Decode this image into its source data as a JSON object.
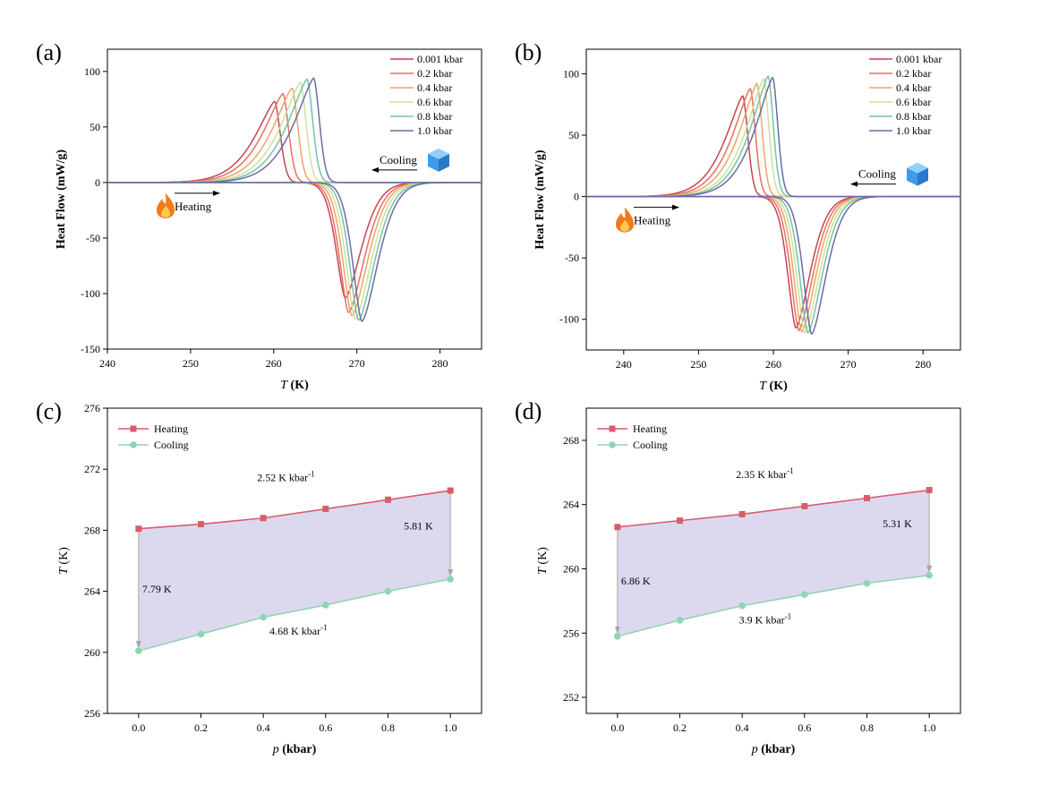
{
  "colors": {
    "c0": "#c9434f",
    "c1": "#e4705f",
    "c2": "#eea36c",
    "c3": "#cbe29a",
    "c4": "#76c2a4",
    "c5": "#6b6ba6",
    "heating": "#d95c6b",
    "cooling": "#8fd4b5",
    "fill": "#dcd9ef",
    "arrow_gray": "#a6a6a6",
    "ice": "#3d9be9",
    "flame": "#f07a1a"
  },
  "panels": {
    "a": {
      "label": "(a)",
      "heating": "Heating",
      "cooling": "Cooling",
      "flame": "flame-icon",
      "ice": "ice-cube-icon"
    },
    "b": {
      "label": "(b)",
      "heating": "Heating",
      "cooling": "Cooling",
      "flame": "flame-icon",
      "ice": "ice-cube-icon"
    },
    "c": {
      "label": "(c)"
    },
    "d": {
      "label": "(d)"
    }
  },
  "chart_data": [
    {
      "id": "a",
      "type": "line",
      "xlabel_italic": "T",
      "xlabel_rest": " (K)",
      "ylabel": "Heat Flow (mW/g)",
      "xlim": [
        240,
        285
      ],
      "ylim": [
        -150,
        120
      ],
      "xticks": [
        240,
        250,
        260,
        270,
        280
      ],
      "yticks": [
        -150,
        -100,
        -50,
        0,
        50,
        100
      ],
      "series": [
        {
          "name": "0.001 kbar",
          "heat_peak_T": 260.1,
          "heat_peak": 73,
          "cool_peak_T": 268.6,
          "cool_peak": -104
        },
        {
          "name": "0.2 kbar",
          "heat_peak_T": 261.1,
          "heat_peak": 80,
          "cool_peak_T": 269.0,
          "cool_peak": -117
        },
        {
          "name": "0.4 kbar",
          "heat_peak_T": 262.2,
          "heat_peak": 85,
          "cool_peak_T": 269.4,
          "cool_peak": -120
        },
        {
          "name": "0.6 kbar",
          "heat_peak_T": 263.2,
          "heat_peak": 90,
          "cool_peak_T": 269.8,
          "cool_peak": -123
        },
        {
          "name": "0.8 kbar",
          "heat_peak_T": 264.0,
          "heat_peak": 93,
          "cool_peak_T": 270.2,
          "cool_peak": -124
        },
        {
          "name": "1.0 kbar",
          "heat_peak_T": 264.8,
          "heat_peak": 94,
          "cool_peak_T": 270.6,
          "cool_peak": -125
        }
      ]
    },
    {
      "id": "b",
      "type": "line",
      "xlabel_italic": "T",
      "xlabel_rest": " (K)",
      "ylabel": "Heat Flow (mW/g)",
      "xlim": [
        235,
        285
      ],
      "ylim": [
        -125,
        120
      ],
      "xticks": [
        240,
        250,
        260,
        270,
        280
      ],
      "yticks": [
        -100,
        -50,
        0,
        50,
        100
      ],
      "series": [
        {
          "name": "0.001 kbar",
          "heat_peak_T": 255.9,
          "heat_peak": 82,
          "cool_peak_T": 263.0,
          "cool_peak": -107
        },
        {
          "name": "0.2 kbar",
          "heat_peak_T": 256.9,
          "heat_peak": 88,
          "cool_peak_T": 263.4,
          "cool_peak": -109
        },
        {
          "name": "0.4 kbar",
          "heat_peak_T": 257.8,
          "heat_peak": 92,
          "cool_peak_T": 263.8,
          "cool_peak": -110
        },
        {
          "name": "0.6 kbar",
          "heat_peak_T": 258.7,
          "heat_peak": 96,
          "cool_peak_T": 264.2,
          "cool_peak": -111
        },
        {
          "name": "0.8 kbar",
          "heat_peak_T": 259.3,
          "heat_peak": 98,
          "cool_peak_T": 264.6,
          "cool_peak": -111
        },
        {
          "name": "1.0 kbar",
          "heat_peak_T": 259.9,
          "heat_peak": 97,
          "cool_peak_T": 265.1,
          "cool_peak": -112
        }
      ]
    },
    {
      "id": "c",
      "type": "line",
      "xlabel_italic": "p",
      "xlabel_rest": "  (kbar)",
      "ylabel_italic": "T",
      "ylabel_rest": " (K)",
      "xlim": [
        -0.1,
        1.1
      ],
      "ylim": [
        256,
        276
      ],
      "xticks": [
        "0.0",
        "0.2",
        "0.4",
        "0.6",
        "0.8",
        "1.0"
      ],
      "yticks": [
        256,
        260,
        264,
        268,
        272,
        276
      ],
      "x": [
        0.0,
        0.2,
        0.4,
        0.6,
        0.8,
        1.0
      ],
      "series": [
        {
          "name": "Heating",
          "values": [
            268.1,
            268.4,
            268.8,
            269.4,
            270.0,
            270.6
          ]
        },
        {
          "name": "Cooling",
          "values": [
            260.1,
            261.2,
            262.3,
            263.1,
            264.0,
            264.8
          ]
        }
      ],
      "annotations": {
        "heating_slope": "2.52 K kbar",
        "heating_slope_sup": "-1",
        "cooling_slope": "4.68 K kbar",
        "cooling_slope_sup": "-1",
        "hyst_left": "7.79 K",
        "hyst_right": "5.81 K"
      }
    },
    {
      "id": "d",
      "type": "line",
      "xlabel_italic": "p",
      "xlabel_rest": "  (kbar)",
      "ylabel_italic": "T",
      "ylabel_rest": " (K)",
      "xlim": [
        -0.1,
        1.1
      ],
      "ylim": [
        251,
        270
      ],
      "xticks": [
        "0.0",
        "0.2",
        "0.4",
        "0.6",
        "0.8",
        "1.0"
      ],
      "yticks": [
        252,
        256,
        260,
        264,
        268
      ],
      "x": [
        0.0,
        0.2,
        0.4,
        0.6,
        0.8,
        1.0
      ],
      "series": [
        {
          "name": "Heating",
          "values": [
            262.6,
            263.0,
            263.4,
            263.9,
            264.4,
            264.9
          ]
        },
        {
          "name": "Cooling",
          "values": [
            255.8,
            256.8,
            257.7,
            258.4,
            259.1,
            259.6
          ]
        }
      ],
      "annotations": {
        "heating_slope": "2.35 K kbar",
        "heating_slope_sup": "-1",
        "cooling_slope": "3.9 K kbar",
        "cooling_slope_sup": "-1",
        "hyst_left": "6.86 K",
        "hyst_right": "5.31 K"
      }
    }
  ]
}
